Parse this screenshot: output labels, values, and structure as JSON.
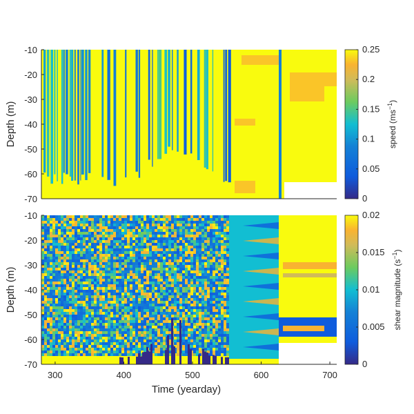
{
  "chart_data": [
    {
      "type": "heatmap",
      "panel": "top",
      "xlim": [
        280,
        710
      ],
      "ylim": [
        -70,
        -10
      ],
      "yticks": [
        "-10",
        "-20",
        "-30",
        "-40",
        "-50",
        "-60",
        "-70"
      ],
      "ytick_values": [
        -10,
        -20,
        -30,
        -40,
        -50,
        -60,
        -70
      ],
      "xticks_shown": false,
      "ylabel": "Depth (m)",
      "colorbar": {
        "label": "speed (ms",
        "label_sup": "−1",
        "label_end": ")",
        "range": [
          0,
          0.25
        ],
        "ticks": [
          "0",
          "0.05",
          "0.1",
          "0.15",
          "0.2",
          "0.25"
        ],
        "tick_values": [
          0,
          0.05,
          0.1,
          0.15,
          0.2,
          0.25
        ]
      },
      "colormap": "parula",
      "description_regions": [
        {
          "x_range": [
            283,
            555
          ],
          "pattern": "alternating vertical stripes, mostly yellow with blue bands"
        },
        {
          "x_range": [
            555,
            630
          ],
          "pattern": "mostly saturated yellow with orange bands near -15, -38, -65 m"
        },
        {
          "x_range": [
            630,
            710
          ],
          "pattern": "yellow, blank below -63 m"
        }
      ]
    },
    {
      "type": "heatmap",
      "panel": "bottom",
      "xlim": [
        280,
        710
      ],
      "ylim": [
        -70,
        -10
      ],
      "xticks": [
        "300",
        "400",
        "500",
        "600",
        "700"
      ],
      "xtick_values": [
        300,
        400,
        500,
        600,
        700
      ],
      "yticks": [
        "-10",
        "-20",
        "-30",
        "-40",
        "-50",
        "-60",
        "-70"
      ],
      "ytick_values": [
        -10,
        -20,
        -30,
        -40,
        -50,
        -60,
        -70
      ],
      "xlabel": "Time (yearday)",
      "ylabel": "Depth (m)",
      "colorbar": {
        "label": "shear magnitude (s",
        "label_sup": "−1",
        "label_end": ")",
        "range": [
          0,
          0.02
        ],
        "ticks": [
          "0",
          "0.005",
          "0.01",
          "0.015",
          "0.02"
        ],
        "tick_values": [
          0,
          0.005,
          0.01,
          0.015,
          0.02
        ]
      },
      "colormap": "parula",
      "description_regions": [
        {
          "x_range": [
            283,
            550
          ],
          "pattern": "noisy blue/cyan/yellow field, dark blue low-shear patches near bottom around 420-520"
        },
        {
          "x_range": [
            550,
            630
          ],
          "pattern": "blue-cyan field with yellow-orange wedges"
        },
        {
          "x_range": [
            630,
            710
          ],
          "pattern": "yellow with orange bands near -25, -30 m and blue band near -55 m, blank below -62 m"
        }
      ]
    }
  ],
  "colors": {
    "parula_dark": "#352a87",
    "parula_blue": "#0f5cdd",
    "parula_cyan": "#12bed2",
    "parula_green": "#6ccb5f",
    "parula_orange": "#f9b331",
    "parula_yellow": "#f9fb0e"
  }
}
